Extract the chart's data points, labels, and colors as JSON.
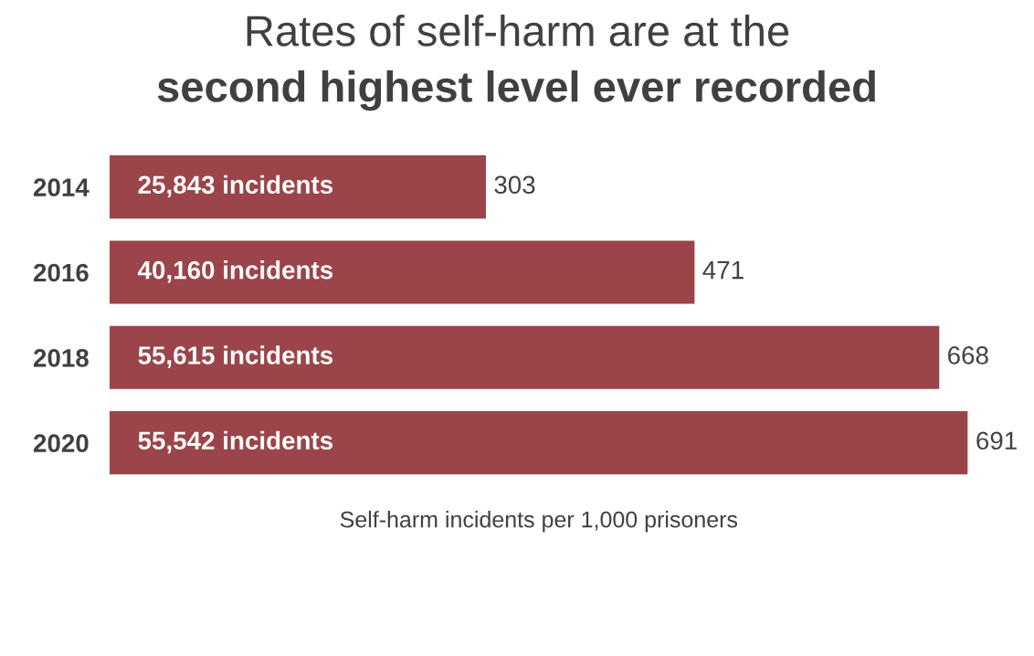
{
  "chart_data": {
    "type": "bar",
    "orientation": "horizontal",
    "title": "Rates of self-harm are at the",
    "subtitle": "second highest level ever recorded",
    "xlabel": "Self-harm incidents per 1,000 prisoners",
    "categories": [
      "2014",
      "2016",
      "2018",
      "2020"
    ],
    "values": [
      303,
      471,
      668,
      691
    ],
    "color": "#9b4449",
    "data_labels": true,
    "grid": false,
    "tick_labels": "y",
    "annotations": [
      "25,843 incidents",
      "40,160 incidents",
      "55,615 incidents",
      "55,542 incidents"
    ]
  }
}
